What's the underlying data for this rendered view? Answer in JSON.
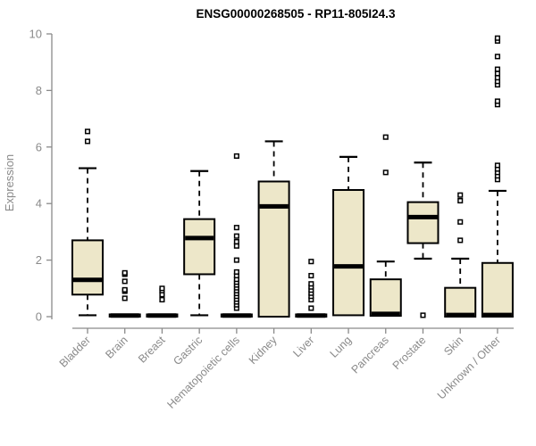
{
  "chart_data": {
    "type": "boxplot",
    "title": "ENSG00000268505 - RP11-805I24.3",
    "ylabel": "Expression",
    "xlabel": "",
    "ylim": [
      0,
      10
    ],
    "yticks": [
      0,
      2,
      4,
      6,
      8,
      10
    ],
    "grid": false,
    "legend": "none",
    "x_tick_rotation": 45,
    "categories": [
      "Bladder",
      "Brain",
      "Breast",
      "Gastric",
      "Hematopoietic cells",
      "Kidney",
      "Liver",
      "Lung",
      "Pancreas",
      "Prostate",
      "Skin",
      "Unknown / Other"
    ],
    "series": [
      {
        "category": "Bladder",
        "whisker_low": 0.05,
        "q1": 0.78,
        "median": 1.3,
        "q3": 2.7,
        "whisker_high": 5.25,
        "outliers": [
          6.2,
          6.55
        ]
      },
      {
        "category": "Brain",
        "whisker_low": null,
        "q1": 0,
        "median": 0.04,
        "q3": 0.08,
        "whisker_high": null,
        "outliers": [
          0.65,
          0.9,
          0.95,
          1.25,
          1.5,
          1.55
        ]
      },
      {
        "category": "Breast",
        "whisker_low": null,
        "q1": 0,
        "median": 0.04,
        "q3": 0.08,
        "whisker_high": null,
        "outliers": [
          0.6,
          0.78,
          0.92,
          1.0
        ]
      },
      {
        "category": "Gastric",
        "whisker_low": 0.05,
        "q1": 1.5,
        "median": 2.78,
        "q3": 3.45,
        "whisker_high": 5.15,
        "outliers": []
      },
      {
        "category": "Hematopoietic cells",
        "whisker_low": null,
        "q1": 0,
        "median": 0.04,
        "q3": 0.08,
        "whisker_high": null,
        "outliers": [
          0.3,
          0.42,
          0.52,
          0.62,
          0.72,
          0.82,
          0.92,
          1.02,
          1.12,
          1.22,
          1.32,
          1.45,
          1.58,
          2.0,
          2.5,
          2.65,
          2.85,
          3.15,
          5.68
        ]
      },
      {
        "category": "Kidney",
        "whisker_low": null,
        "q1": 0,
        "median": 3.9,
        "q3": 4.78,
        "whisker_high": 6.2,
        "outliers": []
      },
      {
        "category": "Liver",
        "whisker_low": null,
        "q1": 0,
        "median": 0.04,
        "q3": 0.08,
        "whisker_high": null,
        "outliers": [
          0.3,
          0.6,
          0.72,
          0.83,
          0.94,
          1.05,
          1.16,
          1.45,
          1.95
        ]
      },
      {
        "category": "Lung",
        "whisker_low": null,
        "q1": 0.05,
        "median": 1.78,
        "q3": 4.48,
        "whisker_high": 5.65,
        "outliers": []
      },
      {
        "category": "Pancreas",
        "whisker_low": null,
        "q1": 0.03,
        "median": 0.1,
        "q3": 1.32,
        "whisker_high": 1.95,
        "outliers": [
          5.1,
          6.35
        ]
      },
      {
        "category": "Prostate",
        "whisker_low": 2.05,
        "q1": 2.6,
        "median": 3.52,
        "q3": 4.05,
        "whisker_high": 5.45,
        "outliers": [
          0.05
        ]
      },
      {
        "category": "Skin",
        "whisker_low": null,
        "q1": 0,
        "median": 0.06,
        "q3": 1.02,
        "whisker_high": 2.05,
        "outliers": [
          2.7,
          3.35,
          4.1,
          4.3
        ]
      },
      {
        "category": "Unknown / Other",
        "whisker_low": null,
        "q1": 0,
        "median": 0.06,
        "q3": 1.9,
        "whisker_high": 4.45,
        "outliers": [
          4.85,
          4.98,
          5.1,
          5.22,
          5.35,
          7.5,
          7.62,
          8.2,
          8.32,
          8.45,
          8.6,
          8.75,
          9.2,
          9.75,
          9.85
        ]
      }
    ],
    "colors": {
      "box_fill": "#EDE7C9",
      "box_border": "#000000",
      "median": "#000000",
      "whisker": "#000000",
      "outlier_border": "#000000",
      "outlier_fill": "#FFFFFF",
      "axis": "#8A8A8A",
      "title_color": "#000000",
      "background": "#FFFFFF"
    }
  }
}
